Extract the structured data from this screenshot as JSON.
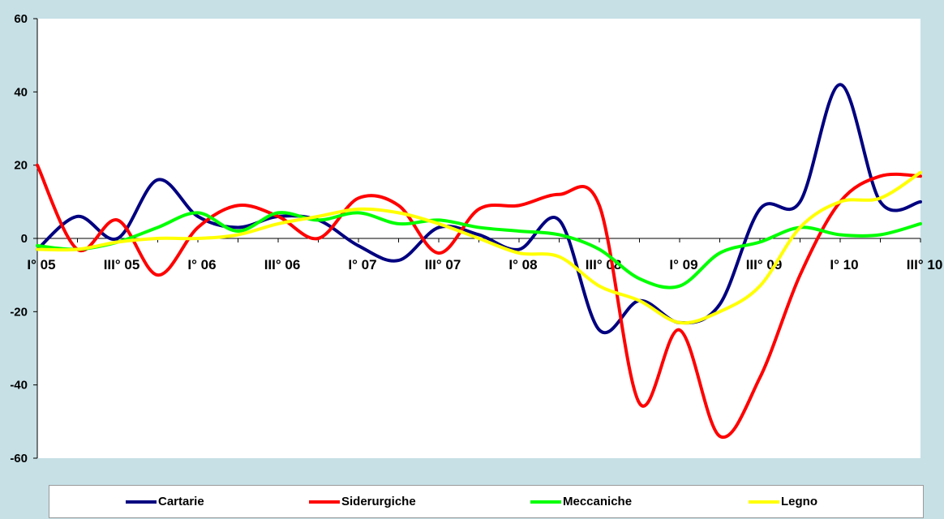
{
  "chart_data": {
    "type": "line",
    "title": "",
    "xlabel": "",
    "ylabel": "",
    "ylim": [
      -60,
      60
    ],
    "yticks": [
      -60,
      -40,
      -20,
      0,
      20,
      40,
      60
    ],
    "ytick_labels": [
      "-60",
      "-40",
      "-20",
      "0",
      "20",
      "40",
      "60"
    ],
    "x_labels": [
      "I° 05",
      "III° 05",
      "I° 06",
      "III° 06",
      "I° 07",
      "III° 07",
      "I° 08",
      "III° 08",
      "I° 09",
      "III° 09",
      "I° 10",
      "III° 10"
    ],
    "x_label_positions": [
      0,
      2,
      4,
      6,
      8,
      10,
      12,
      14,
      16,
      18,
      20,
      22
    ],
    "x": [
      0,
      1,
      2,
      3,
      4,
      5,
      6,
      7,
      8,
      9,
      10,
      11,
      12,
      13,
      14,
      15,
      16,
      17,
      18,
      19,
      20,
      21,
      22
    ],
    "grid": false,
    "legend_position": "bottom",
    "series": [
      {
        "name": "Cartarie",
        "color": "#000080",
        "values": [
          -3,
          6,
          0,
          16,
          6,
          3,
          6,
          5,
          -2,
          -6,
          3,
          1,
          -3,
          5,
          -25,
          -17,
          -23,
          -18,
          8,
          10,
          42,
          10,
          10
        ]
      },
      {
        "name": "Siderurgiche",
        "color": "#ff0000",
        "values": [
          20,
          -3,
          5,
          -10,
          3,
          9,
          6,
          0,
          11,
          9,
          -4,
          8,
          9,
          12,
          9,
          -45,
          -25,
          -54,
          -38,
          -10,
          10,
          17,
          17
        ]
      },
      {
        "name": "Meccaniche",
        "color": "#00ff00",
        "values": [
          -2,
          -3,
          -1,
          3,
          7,
          2,
          7,
          5,
          7,
          4,
          5,
          3,
          2,
          1,
          -3,
          -11,
          -13,
          -4,
          -1,
          3,
          1,
          1,
          4
        ]
      },
      {
        "name": "Legno",
        "color": "#ffff00",
        "values": [
          -3,
          -3,
          -1,
          0,
          0,
          1,
          4,
          6,
          8,
          7,
          4,
          0,
          -4,
          -5,
          -13,
          -17,
          -23,
          -20,
          -13,
          3,
          10,
          11,
          18
        ]
      }
    ]
  }
}
